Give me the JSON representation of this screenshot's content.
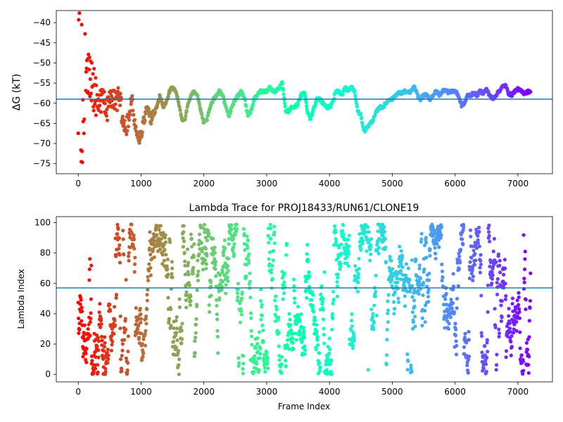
{
  "chart_data": [
    {
      "type": "scatter",
      "title": "",
      "xlabel": "",
      "ylabel": "ΔG (kT)",
      "xlim": [
        -350,
        7550
      ],
      "ylim": [
        -77.5,
        -37
      ],
      "xticks": [
        0,
        1000,
        2000,
        3000,
        4000,
        5000,
        6000,
        7000
      ],
      "yticks": [
        -75,
        -70,
        -65,
        -60,
        -55,
        -50,
        -45,
        -40
      ],
      "hline": -59,
      "hline_color": "#1f77b4",
      "colormap": "rainbow (red at frame 0 to violet at final frame)",
      "trace_keypoints": [
        [
          0,
          -52
        ],
        [
          60,
          -55
        ],
        [
          120,
          -53
        ],
        [
          180,
          -54
        ],
        [
          250,
          -56
        ],
        [
          300,
          -58
        ],
        [
          350,
          -60
        ],
        [
          400,
          -58
        ],
        [
          450,
          -62
        ],
        [
          500,
          -60
        ],
        [
          550,
          -58
        ],
        [
          600,
          -60
        ],
        [
          650,
          -57
        ],
        [
          700,
          -63
        ],
        [
          750,
          -66
        ],
        [
          800,
          -64
        ],
        [
          850,
          -58
        ],
        [
          900,
          -65
        ],
        [
          950,
          -69
        ],
        [
          1000,
          -68
        ],
        [
          1050,
          -64
        ],
        [
          1100,
          -60
        ],
        [
          1150,
          -64
        ],
        [
          1200,
          -63
        ],
        [
          1250,
          -61
        ],
        [
          1300,
          -58
        ],
        [
          1350,
          -61
        ],
        [
          1400,
          -60
        ],
        [
          1450,
          -57
        ],
        [
          1500,
          -56
        ],
        [
          1550,
          -57
        ],
        [
          1600,
          -60
        ],
        [
          1650,
          -64
        ],
        [
          1700,
          -64
        ],
        [
          1750,
          -60
        ],
        [
          1800,
          -58
        ],
        [
          1850,
          -57
        ],
        [
          1900,
          -58
        ],
        [
          1950,
          -62
        ],
        [
          2000,
          -65
        ],
        [
          2050,
          -64
        ],
        [
          2100,
          -61
        ],
        [
          2150,
          -59
        ],
        [
          2200,
          -58
        ],
        [
          2250,
          -57
        ],
        [
          2300,
          -58
        ],
        [
          2350,
          -61
        ],
        [
          2400,
          -63
        ],
        [
          2450,
          -61
        ],
        [
          2500,
          -59
        ],
        [
          2550,
          -58
        ],
        [
          2600,
          -57
        ],
        [
          2650,
          -59
        ],
        [
          2700,
          -63
        ],
        [
          2750,
          -62
        ],
        [
          2800,
          -59
        ],
        [
          2850,
          -58
        ],
        [
          2900,
          -57
        ],
        [
          2950,
          -57
        ],
        [
          3000,
          -57
        ],
        [
          3050,
          -56
        ],
        [
          3100,
          -57
        ],
        [
          3150,
          -57
        ],
        [
          3200,
          -56
        ],
        [
          3250,
          -55
        ],
        [
          3300,
          -62
        ],
        [
          3350,
          -62
        ],
        [
          3400,
          -61
        ],
        [
          3450,
          -61
        ],
        [
          3500,
          -60
        ],
        [
          3550,
          -58
        ],
        [
          3600,
          -57
        ],
        [
          3650,
          -62
        ],
        [
          3700,
          -64
        ],
        [
          3750,
          -61
        ],
        [
          3800,
          -59
        ],
        [
          3850,
          -59
        ],
        [
          3900,
          -60
        ],
        [
          3950,
          -61
        ],
        [
          4000,
          -61
        ],
        [
          4050,
          -60
        ],
        [
          4100,
          -57
        ],
        [
          4150,
          -57
        ],
        [
          4200,
          -58
        ],
        [
          4250,
          -56
        ],
        [
          4300,
          -57
        ],
        [
          4350,
          -56
        ],
        [
          4400,
          -57
        ],
        [
          4450,
          -62
        ],
        [
          4500,
          -63
        ],
        [
          4550,
          -67
        ],
        [
          4600,
          -66
        ],
        [
          4650,
          -65
        ],
        [
          4700,
          -64
        ],
        [
          4750,
          -62
        ],
        [
          4800,
          -61
        ],
        [
          4850,
          -61
        ],
        [
          4900,
          -60
        ],
        [
          4950,
          -59
        ],
        [
          5000,
          -59
        ],
        [
          5050,
          -58
        ],
        [
          5100,
          -57.5
        ],
        [
          5150,
          -57.5
        ],
        [
          5200,
          -57
        ],
        [
          5250,
          -57.5
        ],
        [
          5300,
          -57
        ],
        [
          5350,
          -56
        ],
        [
          5400,
          -58
        ],
        [
          5450,
          -59
        ],
        [
          5500,
          -58
        ],
        [
          5550,
          -58
        ],
        [
          5600,
          -59
        ],
        [
          5650,
          -58
        ],
        [
          5700,
          -57
        ],
        [
          5750,
          -58
        ],
        [
          5800,
          -57
        ],
        [
          5850,
          -56.5
        ],
        [
          5900,
          -57.5
        ],
        [
          5950,
          -57
        ],
        [
          6000,
          -57
        ],
        [
          6050,
          -58
        ],
        [
          6100,
          -60.5
        ],
        [
          6150,
          -60
        ],
        [
          6200,
          -58
        ],
        [
          6250,
          -58
        ],
        [
          6300,
          -57.5
        ],
        [
          6350,
          -58
        ],
        [
          6400,
          -57
        ],
        [
          6450,
          -57.5
        ],
        [
          6500,
          -56.5
        ],
        [
          6550,
          -58
        ],
        [
          6600,
          -59
        ],
        [
          6650,
          -58
        ],
        [
          6700,
          -57
        ],
        [
          6750,
          -56
        ],
        [
          6800,
          -55.5
        ],
        [
          6850,
          -57.5
        ],
        [
          6900,
          -58
        ],
        [
          6950,
          -57
        ],
        [
          7000,
          -56.5
        ],
        [
          7050,
          -57
        ],
        [
          7100,
          -57.5
        ],
        [
          7150,
          -57.2
        ],
        [
          7200,
          -57
        ]
      ]
    },
    {
      "type": "scatter",
      "title": "Lambda Trace for PROJ18433/RUN61/CLONE19",
      "xlabel": "Frame Index",
      "ylabel": "Lambda Index",
      "xlim": [
        -350,
        7550
      ],
      "ylim": [
        -5,
        104
      ],
      "xticks": [
        0,
        1000,
        2000,
        3000,
        4000,
        5000,
        6000,
        7000
      ],
      "yticks": [
        0,
        20,
        40,
        60,
        80,
        100
      ],
      "hline": 57,
      "hline_color": "#1f77b4",
      "colormap": "rainbow (red at frame 0 to violet at final frame)",
      "n_frames": 7200,
      "value_range": [
        0,
        99
      ]
    }
  ]
}
